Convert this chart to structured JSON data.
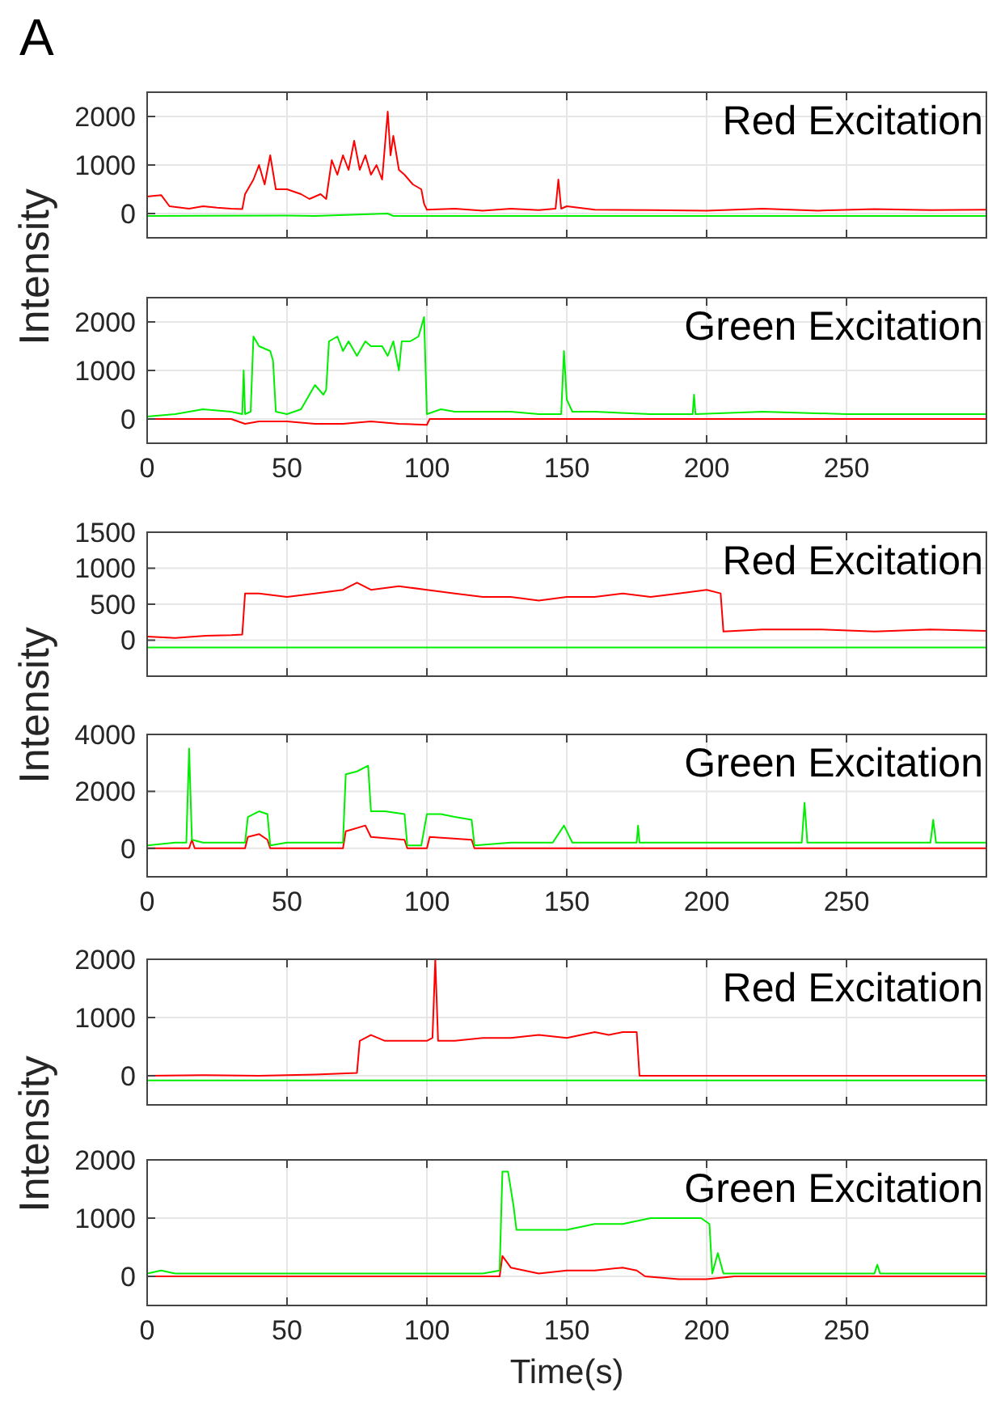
{
  "chart_data": [
    {
      "type": "line",
      "title": "Red Excitation",
      "ylabel": "Intensity",
      "annotations": [
        "A"
      ],
      "xlim": [
        0,
        300
      ],
      "xticks": [
        0,
        50,
        100,
        150,
        200,
        250
      ],
      "ylim": [
        -500,
        2500
      ],
      "yticks": [
        0,
        1000,
        2000
      ],
      "grid": true,
      "tick_labels": "y",
      "line_style": "solid",
      "marker": "none",
      "series": [
        {
          "color": "#ff0000",
          "x": [
            0,
            5,
            8,
            15,
            20,
            25,
            30,
            34,
            35,
            38,
            40,
            42,
            44,
            46,
            50,
            55,
            58,
            62,
            64,
            66,
            68,
            70,
            72,
            74,
            76,
            78,
            80,
            82,
            84,
            86,
            87,
            88,
            90,
            92,
            95,
            98,
            99,
            100,
            110,
            120,
            130,
            140,
            146,
            147,
            148,
            150,
            160,
            180,
            200,
            220,
            240,
            260,
            280,
            300
          ],
          "values": [
            350,
            380,
            150,
            100,
            150,
            120,
            100,
            90,
            400,
            700,
            1000,
            600,
            1200,
            500,
            500,
            400,
            300,
            400,
            300,
            1100,
            800,
            1200,
            900,
            1500,
            900,
            1200,
            800,
            1000,
            700,
            2100,
            1200,
            1600,
            900,
            800,
            600,
            500,
            200,
            80,
            100,
            60,
            100,
            70,
            100,
            700,
            100,
            150,
            80,
            70,
            60,
            100,
            60,
            90,
            70,
            80
          ]
        },
        {
          "color": "#00ee00",
          "x": [
            0,
            50,
            60,
            86,
            88,
            150,
            300
          ],
          "values": [
            -50,
            -40,
            -50,
            0,
            -50,
            -50,
            -50
          ]
        }
      ]
    },
    {
      "type": "line",
      "title": "Green Excitation",
      "xlim": [
        0,
        300
      ],
      "xticks": [
        0,
        50,
        100,
        150,
        200,
        250
      ],
      "ylim": [
        -500,
        2500
      ],
      "yticks": [
        0,
        1000,
        2000
      ],
      "grid": true,
      "line_style": "solid",
      "marker": "none",
      "series": [
        {
          "color": "#ff0000",
          "x": [
            0,
            30,
            35,
            40,
            50,
            60,
            70,
            80,
            90,
            100,
            101,
            150,
            300
          ],
          "values": [
            0,
            0,
            -100,
            -50,
            -50,
            -100,
            -100,
            -50,
            -100,
            -120,
            0,
            0,
            0
          ]
        },
        {
          "color": "#00ee00",
          "x": [
            0,
            10,
            20,
            30,
            34,
            34.5,
            35,
            37,
            38,
            40,
            44,
            45,
            46,
            50,
            55,
            58,
            60,
            63,
            64,
            65,
            68,
            70,
            72,
            75,
            78,
            80,
            84,
            86,
            88,
            90,
            91,
            94,
            97,
            99,
            100,
            105,
            110,
            120,
            130,
            140,
            148,
            149,
            150,
            152,
            160,
            180,
            195,
            195.5,
            196,
            220,
            250,
            280,
            300
          ],
          "values": [
            50,
            100,
            200,
            150,
            100,
            1000,
            100,
            150,
            1700,
            1500,
            1400,
            1200,
            150,
            100,
            200,
            500,
            700,
            500,
            600,
            1600,
            1700,
            1400,
            1600,
            1300,
            1600,
            1500,
            1500,
            1300,
            1600,
            1000,
            1600,
            1600,
            1700,
            2100,
            100,
            200,
            150,
            150,
            150,
            100,
            100,
            1400,
            400,
            150,
            150,
            100,
            100,
            500,
            100,
            150,
            100,
            100,
            100
          ]
        }
      ]
    },
    {
      "type": "line",
      "title": "Red Excitation",
      "ylabel": "Intensity",
      "xlim": [
        0,
        300
      ],
      "xticks": [
        0,
        50,
        100,
        150,
        200,
        250
      ],
      "ylim": [
        -500,
        1500
      ],
      "yticks": [
        0,
        500,
        1000,
        1500
      ],
      "grid": true,
      "tick_labels": "y",
      "line_style": "solid",
      "marker": "none",
      "series": [
        {
          "color": "#ff0000",
          "x": [
            0,
            10,
            20,
            30,
            34,
            35,
            40,
            50,
            60,
            70,
            75,
            80,
            90,
            100,
            110,
            120,
            130,
            140,
            150,
            160,
            170,
            180,
            190,
            200,
            205,
            206,
            220,
            240,
            260,
            280,
            300
          ],
          "values": [
            50,
            30,
            60,
            70,
            80,
            650,
            650,
            600,
            650,
            700,
            800,
            700,
            750,
            700,
            650,
            600,
            600,
            550,
            600,
            600,
            650,
            600,
            650,
            700,
            650,
            120,
            150,
            150,
            120,
            150,
            130
          ]
        },
        {
          "color": "#00ee00",
          "x": [
            0,
            300
          ],
          "values": [
            -100,
            -100
          ]
        }
      ]
    },
    {
      "type": "line",
      "title": "Green Excitation",
      "xlim": [
        0,
        300
      ],
      "xticks": [
        0,
        50,
        100,
        150,
        200,
        250
      ],
      "ylim": [
        -1000,
        4000
      ],
      "yticks": [
        0,
        2000,
        4000
      ],
      "grid": true,
      "line_style": "solid",
      "marker": "none",
      "series": [
        {
          "color": "#ff0000",
          "x": [
            0,
            15,
            16,
            17,
            35,
            36,
            40,
            43,
            44,
            70,
            71,
            78,
            80,
            92,
            93,
            100,
            101,
            116,
            117,
            200,
            300
          ],
          "values": [
            0,
            0,
            300,
            0,
            0,
            400,
            500,
            300,
            0,
            0,
            600,
            800,
            400,
            300,
            0,
            0,
            400,
            300,
            0,
            0,
            0
          ]
        },
        {
          "color": "#00ee00",
          "x": [
            0,
            10,
            14,
            15,
            16,
            20,
            30,
            35,
            36,
            40,
            43,
            44,
            50,
            60,
            70,
            71,
            75,
            79,
            80,
            85,
            92,
            93,
            98,
            100,
            105,
            110,
            116,
            117,
            130,
            145,
            149,
            152,
            160,
            175,
            175.5,
            176,
            200,
            234,
            235,
            236,
            270,
            280,
            281,
            282,
            300
          ],
          "values": [
            100,
            200,
            200,
            3500,
            300,
            200,
            200,
            200,
            1100,
            1300,
            1200,
            100,
            200,
            200,
            200,
            2600,
            2700,
            2900,
            1300,
            1300,
            1200,
            100,
            100,
            1200,
            1200,
            1100,
            1000,
            100,
            200,
            200,
            800,
            200,
            200,
            200,
            800,
            200,
            200,
            200,
            1600,
            200,
            200,
            200,
            1000,
            200,
            200
          ]
        }
      ]
    },
    {
      "type": "line",
      "title": "Red Excitation",
      "ylabel": "Intensity",
      "xlim": [
        0,
        300
      ],
      "xticks": [
        0,
        50,
        100,
        150,
        200,
        250
      ],
      "ylim": [
        -500,
        2000
      ],
      "yticks": [
        0,
        1000,
        2000
      ],
      "grid": true,
      "tick_labels": "y",
      "line_style": "solid",
      "marker": "none",
      "series": [
        {
          "color": "#ff0000",
          "x": [
            0,
            20,
            40,
            60,
            75,
            76,
            80,
            85,
            90,
            100,
            102,
            103,
            104,
            110,
            120,
            130,
            140,
            150,
            160,
            165,
            170,
            175,
            176,
            200,
            300
          ],
          "values": [
            0,
            10,
            0,
            20,
            50,
            600,
            700,
            600,
            600,
            600,
            650,
            2000,
            600,
            600,
            650,
            650,
            700,
            650,
            750,
            700,
            750,
            750,
            0,
            0,
            0
          ]
        },
        {
          "color": "#00ee00",
          "x": [
            0,
            300
          ],
          "values": [
            -80,
            -80
          ]
        }
      ]
    },
    {
      "type": "line",
      "title": "Green Excitation",
      "xlabel": "Time(s)",
      "xlim": [
        0,
        300
      ],
      "xticks": [
        0,
        50,
        100,
        150,
        200,
        250
      ],
      "ylim": [
        -500,
        2000
      ],
      "yticks": [
        0,
        1000,
        2000
      ],
      "grid": true,
      "line_style": "solid",
      "marker": "none",
      "series": [
        {
          "color": "#ff0000",
          "x": [
            0,
            120,
            126,
            127,
            130,
            140,
            150,
            160,
            170,
            175,
            178,
            190,
            200,
            210,
            300
          ],
          "values": [
            0,
            0,
            0,
            350,
            150,
            50,
            100,
            100,
            150,
            100,
            0,
            -50,
            -50,
            0,
            0
          ]
        },
        {
          "color": "#00ee00",
          "x": [
            0,
            5,
            10,
            50,
            100,
            120,
            126,
            127,
            129,
            131,
            132,
            140,
            150,
            160,
            170,
            180,
            190,
            198,
            201,
            202,
            204,
            206,
            220,
            260,
            261,
            262,
            300
          ],
          "values": [
            50,
            100,
            50,
            50,
            50,
            50,
            100,
            1800,
            1800,
            1200,
            800,
            800,
            800,
            900,
            900,
            1000,
            1000,
            1000,
            900,
            50,
            400,
            50,
            50,
            50,
            200,
            50,
            50
          ]
        }
      ]
    }
  ]
}
